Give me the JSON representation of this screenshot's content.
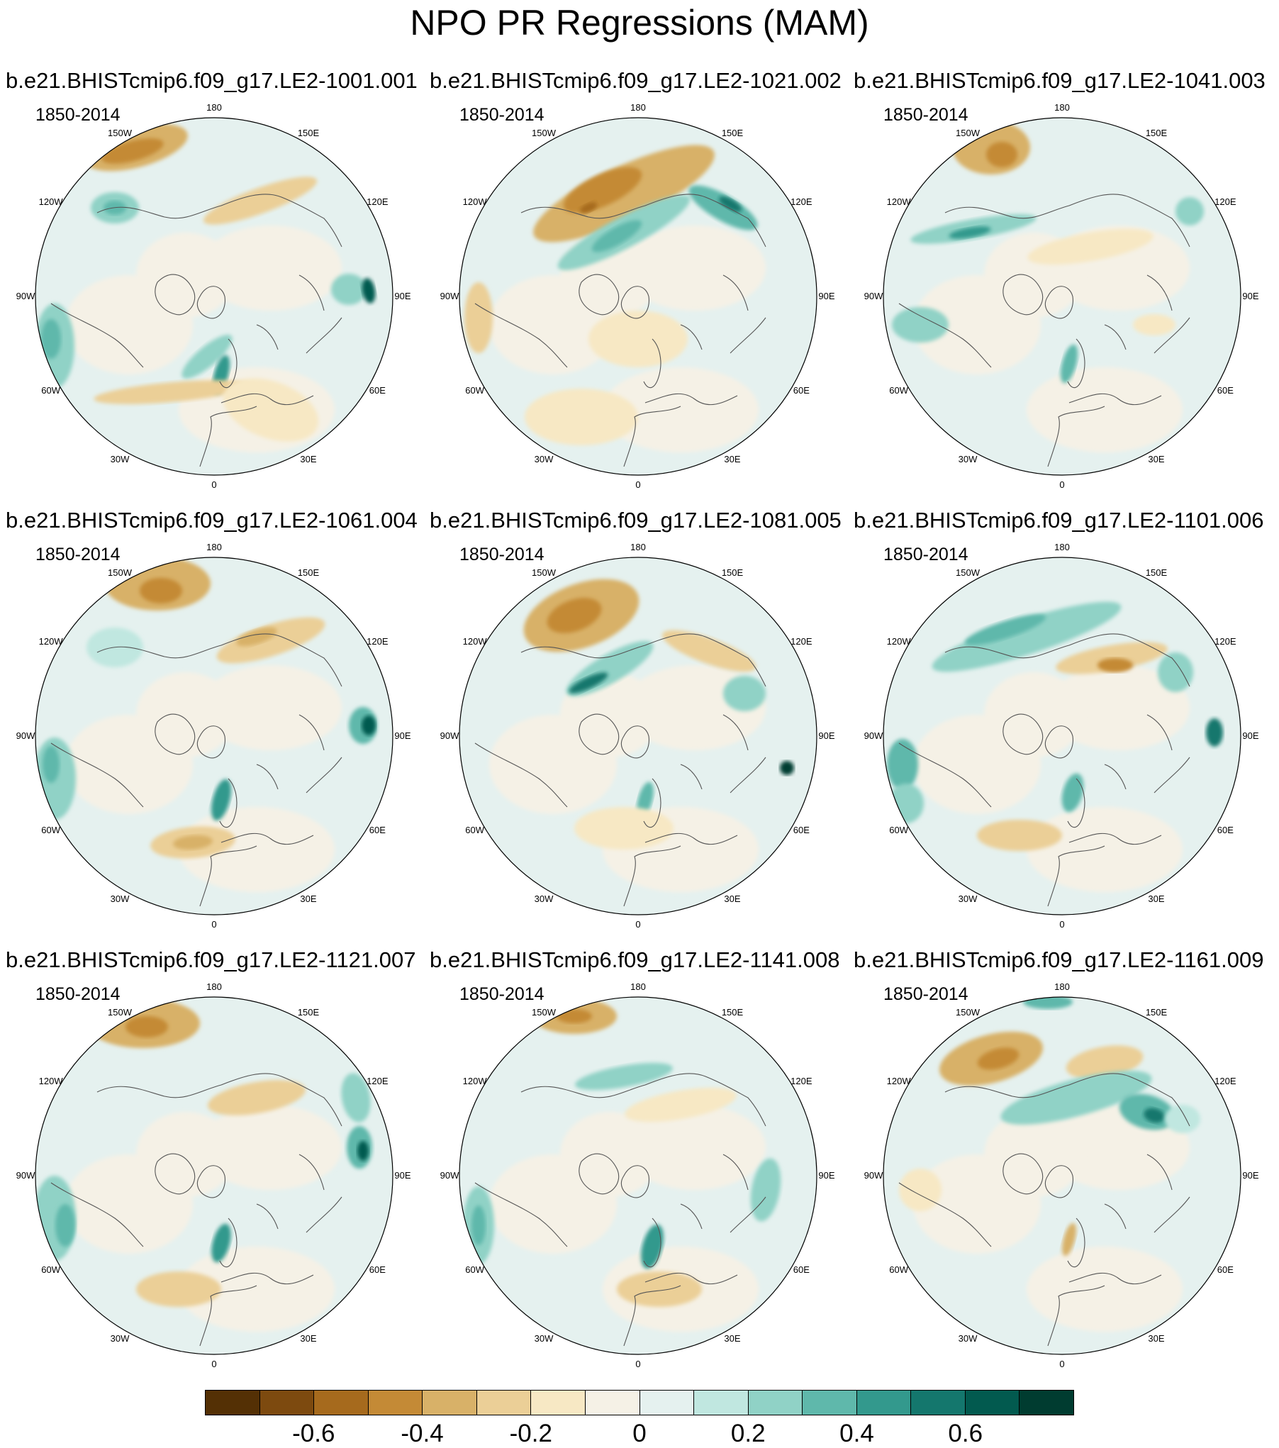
{
  "title": "NPO PR Regressions (MAM)",
  "period_label": "1850-2014",
  "longitude_labels": [
    "180",
    "150E",
    "120E",
    "90E",
    "60E",
    "30E",
    "0",
    "30W",
    "60W",
    "90W",
    "120W",
    "150W"
  ],
  "panels": [
    {
      "name": "b.e21.BHISTcmip6.f09_g17.LE2-1001.001",
      "period": "1850-2014"
    },
    {
      "name": "b.e21.BHISTcmip6.f09_g17.LE2-1021.002",
      "period": "1850-2014"
    },
    {
      "name": "b.e21.BHISTcmip6.f09_g17.LE2-1041.003",
      "period": "1850-2014"
    },
    {
      "name": "b.e21.BHISTcmip6.f09_g17.LE2-1061.004",
      "period": "1850-2014"
    },
    {
      "name": "b.e21.BHISTcmip6.f09_g17.LE2-1081.005",
      "period": "1850-2014"
    },
    {
      "name": "b.e21.BHISTcmip6.f09_g17.LE2-1101.006",
      "period": "1850-2014"
    },
    {
      "name": "b.e21.BHISTcmip6.f09_g17.LE2-1121.007",
      "period": "1850-2014"
    },
    {
      "name": "b.e21.BHISTcmip6.f09_g17.LE2-1141.008",
      "period": "1850-2014"
    },
    {
      "name": "b.e21.BHISTcmip6.f09_g17.LE2-1161.009",
      "period": "1850-2014"
    }
  ],
  "colorbar": {
    "colors": [
      "#543005",
      "#7d4a0f",
      "#a66a1d",
      "#c48a36",
      "#d8b168",
      "#ebcf97",
      "#f7e8c4",
      "#f5f1e6",
      "#e5f1ef",
      "#c0e7e0",
      "#90d2c6",
      "#5fb8ab",
      "#33998d",
      "#14776d",
      "#025a4f",
      "#003c30"
    ],
    "tick_labels": [
      "-0.6",
      "-0.4",
      "-0.2",
      "0",
      "0.2",
      "0.4",
      "0.6"
    ],
    "tick_values": [
      -0.6,
      -0.4,
      -0.2,
      0,
      0.2,
      0.4,
      0.6
    ],
    "range": [
      -0.8,
      0.8
    ]
  }
}
